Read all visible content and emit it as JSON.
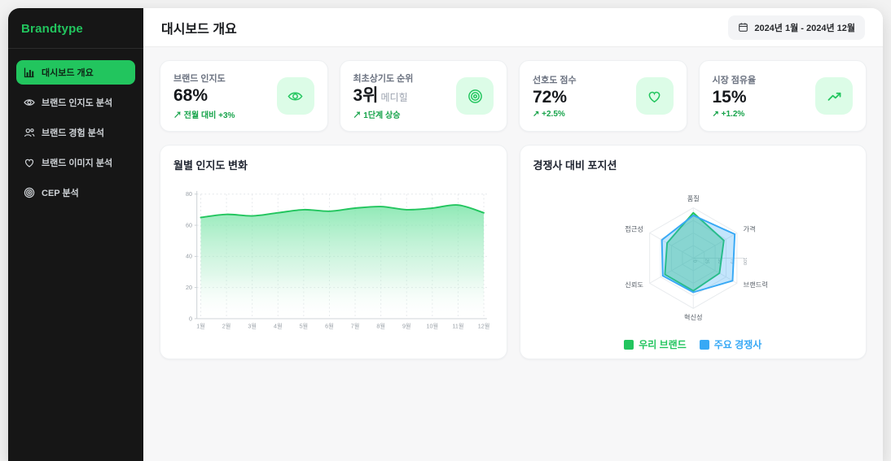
{
  "app": {
    "name": "Brandtype",
    "accent_color": "#22c55e"
  },
  "sidebar": {
    "items": [
      {
        "label": "대시보드 개요",
        "icon": "bar-chart-icon",
        "active": true
      },
      {
        "label": "브랜드 인지도 분석",
        "icon": "eye-icon",
        "active": false
      },
      {
        "label": "브랜드 경험 분석",
        "icon": "users-icon",
        "active": false
      },
      {
        "label": "브랜드 이미지 분석",
        "icon": "heart-icon",
        "active": false
      },
      {
        "label": "CEP 분석",
        "icon": "target-icon",
        "active": false
      }
    ]
  },
  "header": {
    "title": "대시보드 개요",
    "date_range": "2024년 1월 - 2024년 12월",
    "date_icon": "calendar-icon"
  },
  "kpis": [
    {
      "label": "브랜드 인지도",
      "value": "68%",
      "delta": "↗ 전월 대비 +3%",
      "icon": "eye-icon"
    },
    {
      "label": "최초상기도 순위",
      "value": "3위",
      "suffix": "메디힐",
      "delta": "↗ 1단계 상승",
      "icon": "target-icon"
    },
    {
      "label": "선호도 점수",
      "value": "72%",
      "delta": "↗ +2.5%",
      "icon": "heart-icon"
    },
    {
      "label": "시장 점유율",
      "value": "15%",
      "delta": "↗ +1.2%",
      "icon": "trending-up-icon"
    }
  ],
  "colors": {
    "positive_delta": "#16a34a",
    "brand_green": "#22c55e",
    "competitor_blue": "#38a9f5",
    "icon_tile_bg": "#dcfce7"
  },
  "chart_data": [
    {
      "type": "area",
      "title": "월별 인지도 변화",
      "categories": [
        "1월",
        "2월",
        "3월",
        "4월",
        "5월",
        "6월",
        "7월",
        "8월",
        "9월",
        "10월",
        "11월",
        "12월"
      ],
      "values": [
        65,
        67,
        66,
        68,
        70,
        69,
        71,
        72,
        70,
        71,
        73,
        68
      ],
      "ylabel": "",
      "xlabel": "",
      "ylim": [
        0,
        80
      ],
      "yticks": [
        0,
        20,
        40,
        60,
        80
      ],
      "grid": true,
      "line_color": "#22c55e",
      "fill_top_color": "#7de8a8",
      "legend_position": "none"
    },
    {
      "type": "radar",
      "title": "경쟁사 대비 포지션",
      "categories": [
        "품질",
        "가격",
        "브랜드력",
        "혁신성",
        "신뢰도",
        "접근성"
      ],
      "series": [
        {
          "name": "우리 브랜드",
          "color": "#22c55e",
          "values": [
            90,
            70,
            60,
            65,
            65,
            60
          ]
        },
        {
          "name": "주요 경쟁사",
          "color": "#38a9f5",
          "values": [
            85,
            95,
            90,
            68,
            70,
            72
          ]
        }
      ],
      "rmax": 100,
      "rticks": [
        0,
        25,
        50,
        75,
        100
      ],
      "grid": true,
      "legend_position": "bottom"
    }
  ]
}
